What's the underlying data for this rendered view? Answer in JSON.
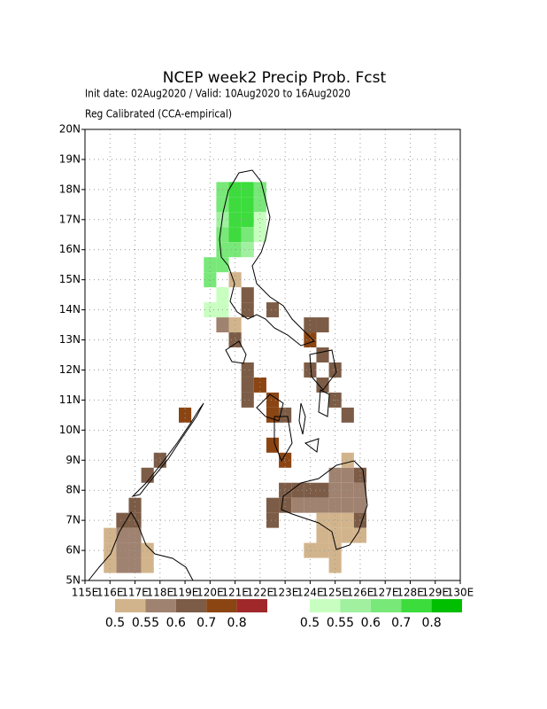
{
  "chart_data": {
    "type": "map",
    "title": "NCEP week2 Precip Prob. Fcst",
    "subtitle": "Init date: 02Aug2020 / Valid: 10Aug2020 to 16Aug2020",
    "method": "Reg Calibrated (CCA-empirical)",
    "xlim": [
      115,
      130
    ],
    "ylim": [
      5,
      20
    ],
    "xticks": [
      {
        "value": 115,
        "label": "115E"
      },
      {
        "value": 116,
        "label": "116E"
      },
      {
        "value": 117,
        "label": "117E"
      },
      {
        "value": 118,
        "label": "118E"
      },
      {
        "value": 119,
        "label": "119E"
      },
      {
        "value": 120,
        "label": "120E"
      },
      {
        "value": 121,
        "label": "121E"
      },
      {
        "value": 122,
        "label": "122E"
      },
      {
        "value": 123,
        "label": "123E"
      },
      {
        "value": 124,
        "label": "124E"
      },
      {
        "value": 125,
        "label": "125E"
      },
      {
        "value": 126,
        "label": "126E"
      },
      {
        "value": 127,
        "label": "127E"
      },
      {
        "value": 128,
        "label": "128E"
      },
      {
        "value": 129,
        "label": "129E"
      },
      {
        "value": 130,
        "label": "130E"
      }
    ],
    "yticks": [
      {
        "value": 5,
        "label": "5N"
      },
      {
        "value": 6,
        "label": "6N"
      },
      {
        "value": 7,
        "label": "7N"
      },
      {
        "value": 8,
        "label": "8N"
      },
      {
        "value": 9,
        "label": "9N"
      },
      {
        "value": 10,
        "label": "10N"
      },
      {
        "value": 11,
        "label": "11N"
      },
      {
        "value": 12,
        "label": "12N"
      },
      {
        "value": 13,
        "label": "13N"
      },
      {
        "value": 14,
        "label": "14N"
      },
      {
        "value": 15,
        "label": "15N"
      },
      {
        "value": 16,
        "label": "16N"
      },
      {
        "value": 17,
        "label": "17N"
      },
      {
        "value": 18,
        "label": "18N"
      },
      {
        "value": 19,
        "label": "19N"
      },
      {
        "value": 20,
        "label": "20N"
      }
    ],
    "grid": true,
    "series": [
      {
        "levels": [
          0.5,
          0.55,
          0.6,
          0.7,
          0.8
        ],
        "colors": [
          "#d2b48c",
          "#a08270",
          "#7c5c46",
          "#8b4513",
          "#a0282a"
        ],
        "cells": [
          [
            120.25,
            13.25,
            0.55
          ],
          [
            120.75,
            13.25,
            0.5
          ],
          [
            120.75,
            12.75,
            0.6
          ],
          [
            120.75,
            14.75,
            0.5
          ],
          [
            121.25,
            14.25,
            0.6
          ],
          [
            121.25,
            13.75,
            0.6
          ],
          [
            122.25,
            13.75,
            0.6
          ],
          [
            121.25,
            11.75,
            0.6
          ],
          [
            121.25,
            11.25,
            0.6
          ],
          [
            121.25,
            10.75,
            0.6
          ],
          [
            121.75,
            11.25,
            0.7
          ],
          [
            122.25,
            10.75,
            0.7
          ],
          [
            122.25,
            10.25,
            0.7
          ],
          [
            122.75,
            10.25,
            0.6
          ],
          [
            122.25,
            9.25,
            0.7
          ],
          [
            122.75,
            8.75,
            0.7
          ],
          [
            123.75,
            13.25,
            0.6
          ],
          [
            124.25,
            13.25,
            0.6
          ],
          [
            123.75,
            12.75,
            0.7
          ],
          [
            123.75,
            11.75,
            0.6
          ],
          [
            124.25,
            12.25,
            0.6
          ],
          [
            124.75,
            11.75,
            0.6
          ],
          [
            124.25,
            11.25,
            0.6
          ],
          [
            124.75,
            10.75,
            0.6
          ],
          [
            125.25,
            10.25,
            0.6
          ],
          [
            122.75,
            7.75,
            0.6
          ],
          [
            123.25,
            7.75,
            0.6
          ],
          [
            123.75,
            7.75,
            0.6
          ],
          [
            124.25,
            7.75,
            0.6
          ],
          [
            124.75,
            7.75,
            0.55
          ],
          [
            125.25,
            7.75,
            0.55
          ],
          [
            125.75,
            7.75,
            0.55
          ],
          [
            124.75,
            8.25,
            0.55
          ],
          [
            125.25,
            8.25,
            0.55
          ],
          [
            125.75,
            8.25,
            0.6
          ],
          [
            125.25,
            8.75,
            0.5
          ],
          [
            122.25,
            7.25,
            0.6
          ],
          [
            122.75,
            7.25,
            0.6
          ],
          [
            123.25,
            7.25,
            0.55
          ],
          [
            123.75,
            7.25,
            0.55
          ],
          [
            124.25,
            7.25,
            0.55
          ],
          [
            124.75,
            7.25,
            0.55
          ],
          [
            125.25,
            7.25,
            0.55
          ],
          [
            125.75,
            7.25,
            0.55
          ],
          [
            122.25,
            6.75,
            0.6
          ],
          [
            124.25,
            6.75,
            0.5
          ],
          [
            124.75,
            6.75,
            0.5
          ],
          [
            125.25,
            6.75,
            0.5
          ],
          [
            125.75,
            6.75,
            0.6
          ],
          [
            124.25,
            6.25,
            0.5
          ],
          [
            124.75,
            6.25,
            0.5
          ],
          [
            125.25,
            6.25,
            0.5
          ],
          [
            125.75,
            6.25,
            0.5
          ],
          [
            123.75,
            5.75,
            0.5
          ],
          [
            124.25,
            5.75,
            0.5
          ],
          [
            124.75,
            5.75,
            0.5
          ],
          [
            124.75,
            5.25,
            0.5
          ],
          [
            117.75,
            8.75,
            0.6
          ],
          [
            117.25,
            8.25,
            0.6
          ],
          [
            118.75,
            10.25,
            0.7
          ],
          [
            116.75,
            7.25,
            0.6
          ],
          [
            116.25,
            6.75,
            0.6
          ],
          [
            116.75,
            6.75,
            0.6
          ],
          [
            116.25,
            6.25,
            0.55
          ],
          [
            116.75,
            6.25,
            0.55
          ],
          [
            115.75,
            6.25,
            0.5
          ],
          [
            115.75,
            5.75,
            0.5
          ],
          [
            116.25,
            5.75,
            0.55
          ],
          [
            116.75,
            5.75,
            0.55
          ],
          [
            116.25,
            5.25,
            0.55
          ],
          [
            116.75,
            5.25,
            0.55
          ],
          [
            115.75,
            5.25,
            0.5
          ],
          [
            117.25,
            5.75,
            0.5
          ],
          [
            117.25,
            5.25,
            0.5
          ]
        ]
      },
      {
        "levels": [
          0.5,
          0.55,
          0.6,
          0.7,
          0.8
        ],
        "colors": [
          "#c8ffc0",
          "#a0f0a0",
          "#78e878",
          "#3cdc3c",
          "#00be00"
        ],
        "cells": [
          [
            120.25,
            17.75,
            0.6
          ],
          [
            120.75,
            17.75,
            0.7
          ],
          [
            121.25,
            17.75,
            0.7
          ],
          [
            121.75,
            17.75,
            0.6
          ],
          [
            120.25,
            17.25,
            0.6
          ],
          [
            120.75,
            17.25,
            0.7
          ],
          [
            121.25,
            17.25,
            0.7
          ],
          [
            121.75,
            17.25,
            0.6
          ],
          [
            120.25,
            16.75,
            0.55
          ],
          [
            120.75,
            16.75,
            0.7
          ],
          [
            121.25,
            16.75,
            0.7
          ],
          [
            121.75,
            16.75,
            0.5
          ],
          [
            120.25,
            16.25,
            0.6
          ],
          [
            120.75,
            16.25,
            0.7
          ],
          [
            121.25,
            16.25,
            0.6
          ],
          [
            121.75,
            16.25,
            0.5
          ],
          [
            120.25,
            15.75,
            0.6
          ],
          [
            120.75,
            15.75,
            0.6
          ],
          [
            121.25,
            15.75,
            0.55
          ],
          [
            119.75,
            15.25,
            0.6
          ],
          [
            120.25,
            15.25,
            0.6
          ],
          [
            119.75,
            14.75,
            0.6
          ],
          [
            120.25,
            14.25,
            0.5
          ],
          [
            119.75,
            13.75,
            0.5
          ],
          [
            120.25,
            13.75,
            0.5
          ]
        ]
      }
    ]
  }
}
